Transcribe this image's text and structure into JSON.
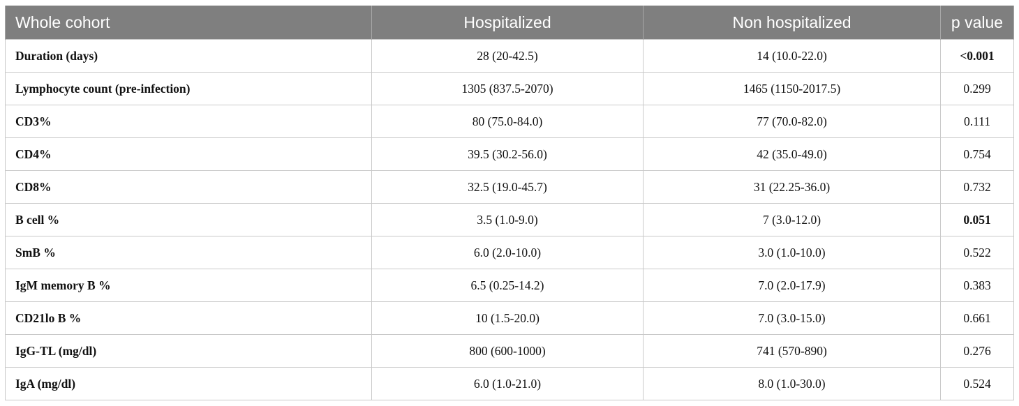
{
  "table": {
    "headers": [
      "Whole cohort",
      "Hospitalized",
      "Non hospitalized",
      "p value"
    ],
    "rows": [
      {
        "label": "Duration (days)",
        "hospitalized": "28 (20-42.5)",
        "non_hospitalized": "14 (10.0-22.0)",
        "p_value": "<0.001",
        "p_bold": true
      },
      {
        "label": "Lymphocyte count (pre-infection)",
        "hospitalized": "1305 (837.5-2070)",
        "non_hospitalized": "1465 (1150-2017.5)",
        "p_value": "0.299",
        "p_bold": false
      },
      {
        "label": "CD3%",
        "hospitalized": "80 (75.0-84.0)",
        "non_hospitalized": "77 (70.0-82.0)",
        "p_value": "0.111",
        "p_bold": false
      },
      {
        "label": "CD4%",
        "hospitalized": "39.5 (30.2-56.0)",
        "non_hospitalized": "42 (35.0-49.0)",
        "p_value": "0.754",
        "p_bold": false
      },
      {
        "label": "CD8%",
        "hospitalized": "32.5 (19.0-45.7)",
        "non_hospitalized": "31 (22.25-36.0)",
        "p_value": "0.732",
        "p_bold": false
      },
      {
        "label": "B cell %",
        "hospitalized": "3.5 (1.0-9.0)",
        "non_hospitalized": "7 (3.0-12.0)",
        "p_value": "0.051",
        "p_bold": true
      },
      {
        "label": "SmB %",
        "hospitalized": "6.0 (2.0-10.0)",
        "non_hospitalized": "3.0 (1.0-10.0)",
        "p_value": "0.522",
        "p_bold": false
      },
      {
        "label": "IgM memory B %",
        "hospitalized": "6.5 (0.25-14.2)",
        "non_hospitalized": "7.0 (2.0-17.9)",
        "p_value": "0.383",
        "p_bold": false
      },
      {
        "label": "CD21lo B %",
        "hospitalized": "10 (1.5-20.0)",
        "non_hospitalized": "7.0 (3.0-15.0)",
        "p_value": "0.661",
        "p_bold": false
      },
      {
        "label": "IgG-TL (mg/dl)",
        "hospitalized": "800 (600-1000)",
        "non_hospitalized": "741 (570-890)",
        "p_value": "0.276",
        "p_bold": false
      },
      {
        "label": "IgA (mg/dl)",
        "hospitalized": "6.0 (1.0-21.0)",
        "non_hospitalized": "8.0 (1.0-30.0)",
        "p_value": "0.524",
        "p_bold": false
      }
    ]
  }
}
